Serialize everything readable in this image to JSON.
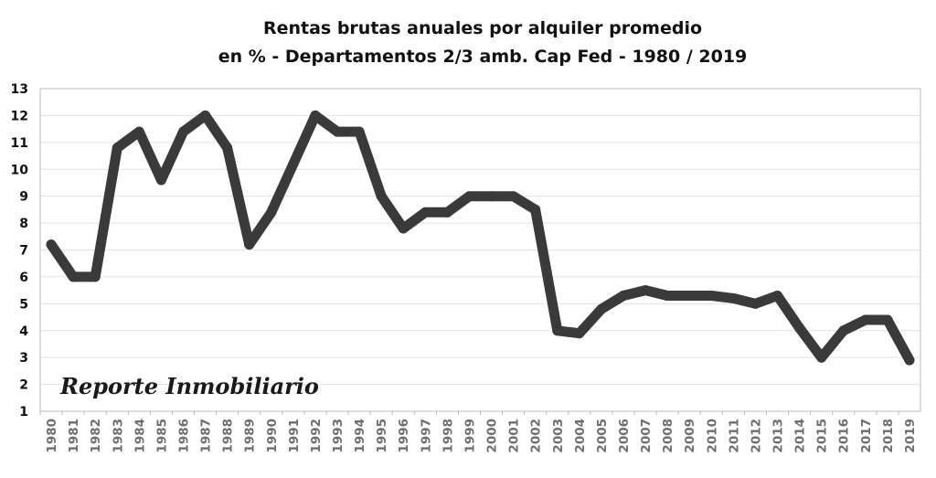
{
  "chart_data": {
    "type": "line",
    "title_lines": [
      "Rentas brutas anuales por alquiler promedio",
      "en % - Departamentos 2/3 amb. Cap Fed - 1980 / 2019"
    ],
    "xlabel": "",
    "ylabel": "",
    "ylim": [
      1,
      13
    ],
    "y_ticks": [
      "1",
      "2",
      "3",
      "4",
      "5",
      "6",
      "7",
      "8",
      "9",
      "10",
      "11",
      "12",
      "13"
    ],
    "categories": [
      "1980",
      "1981",
      "1982",
      "1983",
      "1984",
      "1985",
      "1986",
      "1987",
      "1988",
      "1989",
      "1990",
      "1991",
      "1992",
      "1993",
      "1994",
      "1995",
      "1996",
      "1997",
      "1998",
      "1999",
      "2000",
      "2001",
      "2002",
      "2003",
      "2004",
      "2005",
      "2006",
      "2007",
      "2008",
      "2009",
      "2010",
      "2011",
      "2012",
      "2013",
      "2014",
      "2015",
      "2016",
      "2017",
      "2018",
      "2019"
    ],
    "series": [
      {
        "values": [
          7.2,
          6.0,
          6.0,
          10.8,
          11.4,
          9.6,
          11.4,
          12.0,
          10.8,
          7.2,
          8.4,
          10.2,
          12.0,
          11.4,
          11.4,
          9.0,
          7.8,
          8.4,
          8.4,
          9.0,
          9.0,
          9.0,
          8.5,
          4.0,
          3.9,
          4.8,
          5.3,
          5.5,
          5.3,
          5.3,
          5.3,
          5.2,
          5.0,
          5.3,
          4.1,
          3.0,
          4.0,
          4.4,
          4.4,
          2.9
        ],
        "color": "#3a3a3a"
      }
    ],
    "grid": true,
    "legend": "none"
  },
  "watermark": {
    "text": "Reporte Inmobiliario"
  }
}
